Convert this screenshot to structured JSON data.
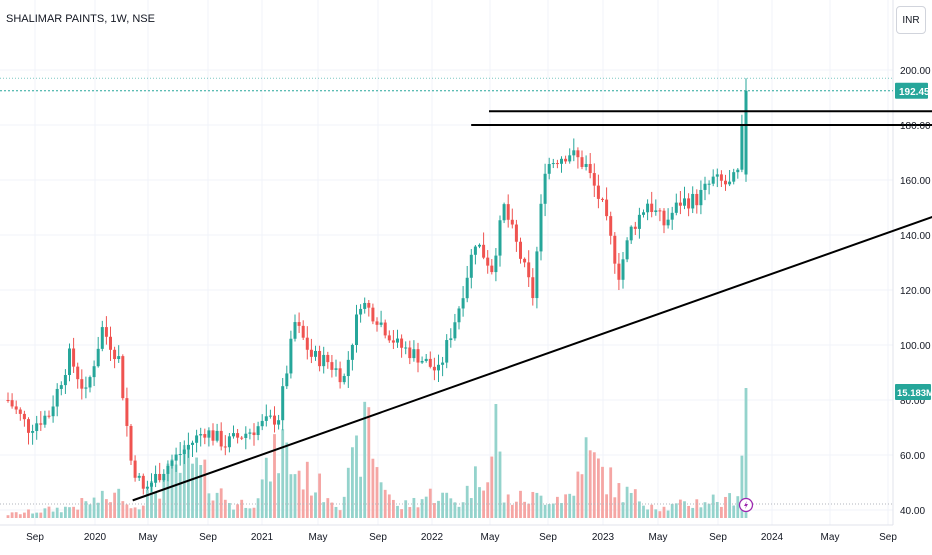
{
  "header": {
    "symbol": "SHALIMAR PAINTS, 1W, NSE",
    "currency": "INR"
  },
  "badges": {
    "last_price": "192.45",
    "volume": "15.183M"
  },
  "colors": {
    "up": "#26a69a",
    "down": "#ef5350",
    "vol_up": "#94d3cc",
    "vol_down": "#f5a6a4",
    "grid": "#f0f3fa",
    "line": "#000000",
    "accent": "#9c27b0"
  },
  "alert_icon": "lightning-icon",
  "chart_data": {
    "type": "candlestick",
    "title": "SHALIMAR PAINTS, 1W, NSE",
    "y_ticks": [
      "200.00",
      "180.00",
      "160.00",
      "140.00",
      "120.00",
      "100.00",
      "80.00",
      "60.00",
      "40.00"
    ],
    "x_ticks": [
      "Sep",
      "2020",
      "May",
      "Sep",
      "2021",
      "May",
      "Sep",
      "2022",
      "May",
      "Sep",
      "2023",
      "May",
      "Sep",
      "2024",
      "May",
      "Sep"
    ],
    "ylim": [
      40,
      200
    ],
    "last_price": 192.45,
    "last_volume": "15.183M",
    "grid": true,
    "trendlines": [
      {
        "name": "rising support",
        "from": [
          "2020-03",
          43.5
        ],
        "to": [
          "2024-04",
          156
        ]
      },
      {
        "name": "resistance 1",
        "from": [
          "2021-11",
          185
        ],
        "to": [
          "2024-04",
          185
        ]
      },
      {
        "name": "resistance 2",
        "from": [
          "2021-10",
          180
        ],
        "to": [
          "2024-04",
          180
        ]
      }
    ],
    "price_anchors": [
      [
        0,
        80
      ],
      [
        5,
        70
      ],
      [
        10,
        75
      ],
      [
        15,
        96
      ],
      [
        19,
        82
      ],
      [
        23,
        106
      ],
      [
        27,
        95
      ],
      [
        30,
        58
      ],
      [
        33,
        47
      ],
      [
        38,
        55
      ],
      [
        43,
        62
      ],
      [
        48,
        69
      ],
      [
        53,
        64
      ],
      [
        58,
        68
      ],
      [
        62,
        71
      ],
      [
        66,
        74
      ],
      [
        70,
        108
      ],
      [
        74,
        96
      ],
      [
        78,
        94
      ],
      [
        82,
        88
      ],
      [
        86,
        116
      ],
      [
        90,
        110
      ],
      [
        95,
        100
      ],
      [
        100,
        96
      ],
      [
        105,
        90
      ],
      [
        110,
        114
      ],
      [
        114,
        138
      ],
      [
        118,
        128
      ],
      [
        121,
        150
      ],
      [
        125,
        132
      ],
      [
        128,
        118
      ],
      [
        131,
        165
      ],
      [
        134,
        168
      ],
      [
        137,
        170
      ],
      [
        141,
        165
      ],
      [
        145,
        150
      ],
      [
        149,
        126
      ],
      [
        152,
        142
      ],
      [
        156,
        152
      ],
      [
        160,
        144
      ],
      [
        164,
        152
      ],
      [
        168,
        153
      ],
      [
        172,
        160
      ],
      [
        176,
        158
      ],
      [
        178,
        162
      ],
      [
        180,
        193
      ]
    ],
    "volume_anchors": [
      [
        0,
        3
      ],
      [
        14,
        8
      ],
      [
        19,
        12
      ],
      [
        27,
        18
      ],
      [
        28,
        25
      ],
      [
        30,
        8
      ],
      [
        44,
        45
      ],
      [
        55,
        10
      ],
      [
        60,
        15
      ],
      [
        67,
        60
      ],
      [
        69,
        42
      ],
      [
        72,
        35
      ],
      [
        81,
        12
      ],
      [
        88,
        75
      ],
      [
        90,
        40
      ],
      [
        95,
        8
      ],
      [
        104,
        20
      ],
      [
        110,
        12
      ],
      [
        118,
        50
      ],
      [
        119,
        78
      ],
      [
        121,
        15
      ],
      [
        138,
        18
      ],
      [
        140,
        55
      ],
      [
        149,
        22
      ],
      [
        160,
        8
      ],
      [
        172,
        15
      ],
      [
        175,
        12
      ],
      [
        178,
        22
      ],
      [
        180,
        100
      ]
    ]
  }
}
